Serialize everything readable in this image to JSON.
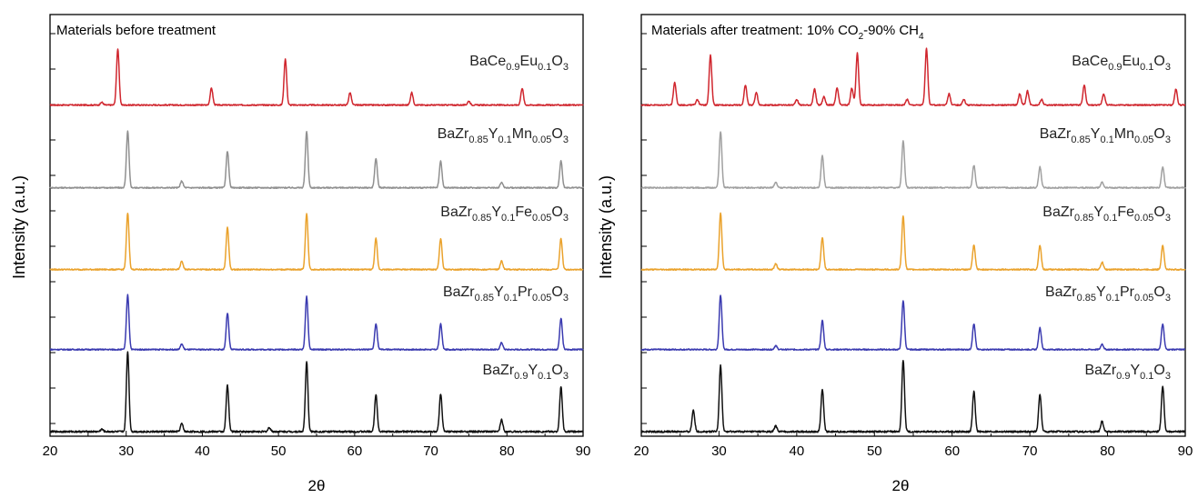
{
  "chart_data": [
    {
      "type": "line",
      "title": "Materials before treatment",
      "xlabel": "2θ",
      "ylabel": "Intensity (a.u.)",
      "xlim": [
        20,
        90
      ],
      "xticks": [
        "20",
        "30",
        "40",
        "50",
        "60",
        "70",
        "80",
        "90"
      ],
      "grid": false,
      "series": [
        {
          "name": "BaCe0.9Eu0.1O3",
          "label": {
            "base": "BaCe",
            "parts": [
              [
                "0.9",
                "Eu"
              ],
              [
                "0.1",
                "O"
              ],
              [
                "3",
                ""
              ]
            ]
          },
          "color": "#d0262e",
          "peaks": [
            [
              26.8,
              0.05
            ],
            [
              28.9,
              1.0
            ],
            [
              41.2,
              0.3
            ],
            [
              50.9,
              0.82
            ],
            [
              59.4,
              0.22
            ],
            [
              67.5,
              0.22
            ],
            [
              75.0,
              0.07
            ],
            [
              82.0,
              0.3
            ]
          ]
        },
        {
          "name": "BaZr0.85Y0.1Mn0.05O3",
          "label": {
            "base": "BaZr",
            "parts": [
              [
                "0.85",
                "Y"
              ],
              [
                "0.1",
                "Mn"
              ],
              [
                "0.05",
                "O"
              ],
              [
                "3",
                ""
              ]
            ]
          },
          "color": "#909090",
          "peaks": [
            [
              30.2,
              1.0
            ],
            [
              37.3,
              0.12
            ],
            [
              43.3,
              0.65
            ],
            [
              53.7,
              1.0
            ],
            [
              62.8,
              0.52
            ],
            [
              71.3,
              0.47
            ],
            [
              79.3,
              0.1
            ],
            [
              87.1,
              0.48
            ]
          ]
        },
        {
          "name": "BaZr0.85Y0.1Fe0.05O3",
          "label": {
            "base": "BaZr",
            "parts": [
              [
                "0.85",
                "Y"
              ],
              [
                "0.1",
                "Fe"
              ],
              [
                "0.05",
                "O"
              ],
              [
                "3",
                ""
              ]
            ]
          },
          "color": "#eaa22c",
          "peaks": [
            [
              30.2,
              1.0
            ],
            [
              37.3,
              0.15
            ],
            [
              43.3,
              0.75
            ],
            [
              53.7,
              1.0
            ],
            [
              62.8,
              0.55
            ],
            [
              71.3,
              0.55
            ],
            [
              79.3,
              0.15
            ],
            [
              87.1,
              0.55
            ]
          ]
        },
        {
          "name": "BaZr0.85Y0.1Pr0.05O3",
          "label": {
            "base": "BaZr",
            "parts": [
              [
                "0.85",
                "Y"
              ],
              [
                "0.1",
                "Pr"
              ],
              [
                "0.05",
                "O"
              ],
              [
                "3",
                ""
              ]
            ]
          },
          "color": "#3a3ab0",
          "peaks": [
            [
              30.2,
              1.0
            ],
            [
              37.3,
              0.1
            ],
            [
              43.3,
              0.67
            ],
            [
              53.7,
              0.97
            ],
            [
              62.8,
              0.47
            ],
            [
              71.3,
              0.47
            ],
            [
              79.3,
              0.13
            ],
            [
              87.1,
              0.57
            ]
          ]
        },
        {
          "name": "BaZr0.9Y0.1O3",
          "label": {
            "base": "BaZr",
            "parts": [
              [
                "0.9",
                "Y"
              ],
              [
                "0.1",
                "O"
              ],
              [
                "3",
                ""
              ]
            ]
          },
          "color": "#111111",
          "peaks": [
            [
              26.8,
              0.03
            ],
            [
              30.2,
              1.0
            ],
            [
              37.3,
              0.1
            ],
            [
              43.3,
              0.58
            ],
            [
              48.8,
              0.05
            ],
            [
              53.7,
              0.87
            ],
            [
              62.8,
              0.47
            ],
            [
              71.3,
              0.47
            ],
            [
              79.3,
              0.15
            ],
            [
              87.1,
              0.56
            ]
          ]
        }
      ]
    },
    {
      "type": "line",
      "title": "Materials after treatment: 10% CO2-90% CH4",
      "title_parts": {
        "a": "Materials after treatment: 10% CO",
        "sub1": "2",
        "b": "-90% CH",
        "sub2": "4"
      },
      "xlabel": "2θ",
      "ylabel": "Intensity (a.u.)",
      "xlim": [
        20,
        90
      ],
      "xticks": [
        "20",
        "30",
        "40",
        "50",
        "60",
        "70",
        "80",
        "90"
      ],
      "grid": false,
      "series": [
        {
          "name": "BaCe0.9Eu0.1O3",
          "label": {
            "base": "BaCe",
            "parts": [
              [
                "0.9",
                "Eu"
              ],
              [
                "0.1",
                "O"
              ],
              [
                "3",
                ""
              ]
            ]
          },
          "color": "#d0262e",
          "peaks": [
            [
              24.3,
              0.4
            ],
            [
              27.2,
              0.1
            ],
            [
              28.9,
              0.88
            ],
            [
              33.4,
              0.35
            ],
            [
              34.8,
              0.22
            ],
            [
              40.0,
              0.1
            ],
            [
              42.3,
              0.28
            ],
            [
              43.5,
              0.15
            ],
            [
              45.2,
              0.3
            ],
            [
              47.1,
              0.3
            ],
            [
              47.8,
              0.92
            ],
            [
              54.2,
              0.1
            ],
            [
              56.7,
              1.0
            ],
            [
              59.6,
              0.2
            ],
            [
              61.5,
              0.1
            ],
            [
              68.7,
              0.2
            ],
            [
              69.7,
              0.25
            ],
            [
              71.5,
              0.1
            ],
            [
              77.0,
              0.35
            ],
            [
              79.5,
              0.2
            ],
            [
              88.8,
              0.28
            ]
          ]
        },
        {
          "name": "BaZr0.85Y0.1Mn0.05O3",
          "label": {
            "base": "BaZr",
            "parts": [
              [
                "0.85",
                "Y"
              ],
              [
                "0.1",
                "Mn"
              ],
              [
                "0.05",
                "O"
              ],
              [
                "3",
                ""
              ]
            ]
          },
          "color": "#a0a0a0",
          "peaks": [
            [
              30.2,
              1.0
            ],
            [
              37.3,
              0.1
            ],
            [
              43.3,
              0.57
            ],
            [
              53.7,
              0.83
            ],
            [
              62.8,
              0.4
            ],
            [
              71.3,
              0.37
            ],
            [
              79.3,
              0.1
            ],
            [
              87.1,
              0.37
            ]
          ]
        },
        {
          "name": "BaZr0.85Y0.1Fe0.05O3",
          "label": {
            "base": "BaZr",
            "parts": [
              [
                "0.85",
                "Y"
              ],
              [
                "0.1",
                "Fe"
              ],
              [
                "0.05",
                "O"
              ],
              [
                "3",
                ""
              ]
            ]
          },
          "color": "#eaa22c",
          "peaks": [
            [
              30.2,
              1.0
            ],
            [
              37.3,
              0.1
            ],
            [
              43.3,
              0.57
            ],
            [
              53.7,
              0.95
            ],
            [
              62.8,
              0.43
            ],
            [
              71.3,
              0.43
            ],
            [
              79.3,
              0.13
            ],
            [
              87.1,
              0.43
            ]
          ]
        },
        {
          "name": "BaZr0.85Y0.1Pr0.05O3",
          "label": {
            "base": "BaZr",
            "parts": [
              [
                "0.85",
                "Y"
              ],
              [
                "0.1",
                "Pr"
              ],
              [
                "0.05",
                "O"
              ],
              [
                "3",
                ""
              ]
            ]
          },
          "color": "#3a3ab0",
          "peaks": [
            [
              30.2,
              1.0
            ],
            [
              37.3,
              0.07
            ],
            [
              43.3,
              0.53
            ],
            [
              53.7,
              0.9
            ],
            [
              62.8,
              0.47
            ],
            [
              71.3,
              0.4
            ],
            [
              79.3,
              0.1
            ],
            [
              87.1,
              0.47
            ]
          ]
        },
        {
          "name": "BaZr0.9Y0.1O3",
          "label": {
            "base": "BaZr",
            "parts": [
              [
                "0.9",
                "Y"
              ],
              [
                "0.1",
                "O"
              ],
              [
                "3",
                ""
              ]
            ]
          },
          "color": "#111111",
          "peaks": [
            [
              26.7,
              0.27
            ],
            [
              30.2,
              0.83
            ],
            [
              37.3,
              0.07
            ],
            [
              43.3,
              0.53
            ],
            [
              53.7,
              0.9
            ],
            [
              62.8,
              0.5
            ],
            [
              71.3,
              0.47
            ],
            [
              79.3,
              0.13
            ],
            [
              87.1,
              0.57
            ]
          ]
        }
      ]
    }
  ]
}
